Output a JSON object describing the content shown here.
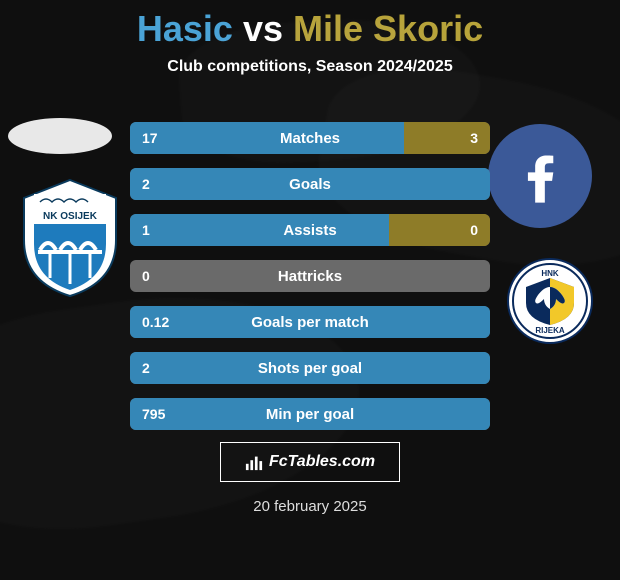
{
  "title": {
    "player_left_name": "Hasic",
    "vs": "vs",
    "player_right_name": "Mile Skoric",
    "left_color": "#4aa3d6",
    "right_color": "#b7a33a"
  },
  "subtitle": "Club competitions, Season 2024/2025",
  "colors": {
    "left": "#3587b7",
    "right": "#8e7c28",
    "bg_neutral": "#6a6a6a",
    "facebook": "#3b5998"
  },
  "stats": [
    {
      "label": "Matches",
      "left_val": "17",
      "right_val": "3",
      "left_pct": 76,
      "right_pct": 24
    },
    {
      "label": "Goals",
      "left_val": "2",
      "right_val": "",
      "left_pct": 100,
      "right_pct": 0
    },
    {
      "label": "Assists",
      "left_val": "1",
      "right_val": "0",
      "left_pct": 72,
      "right_pct": 28
    },
    {
      "label": "Hattricks",
      "left_val": "0",
      "right_val": "",
      "left_pct": 0,
      "right_pct": 0,
      "neutral": true
    },
    {
      "label": "Goals per match",
      "left_val": "0.12",
      "right_val": "",
      "left_pct": 100,
      "right_pct": 0
    },
    {
      "label": "Shots per goal",
      "left_val": "2",
      "right_val": "",
      "left_pct": 100,
      "right_pct": 0
    },
    {
      "label": "Min per goal",
      "left_val": "795",
      "right_val": "",
      "left_pct": 100,
      "right_pct": 0
    }
  ],
  "watermark": "FcTables.com",
  "date": "20 february 2025",
  "club_left": {
    "name": "NK OSIJEK",
    "primary": "#1e7bbd",
    "white": "#ffffff",
    "text": "#0a3a5c"
  },
  "club_right": {
    "name": "HNK RIJEKA",
    "text_top": "HNK",
    "text_bottom": "RIJEKA",
    "primary": "#0a2a5c",
    "accent": "#f2c829"
  }
}
